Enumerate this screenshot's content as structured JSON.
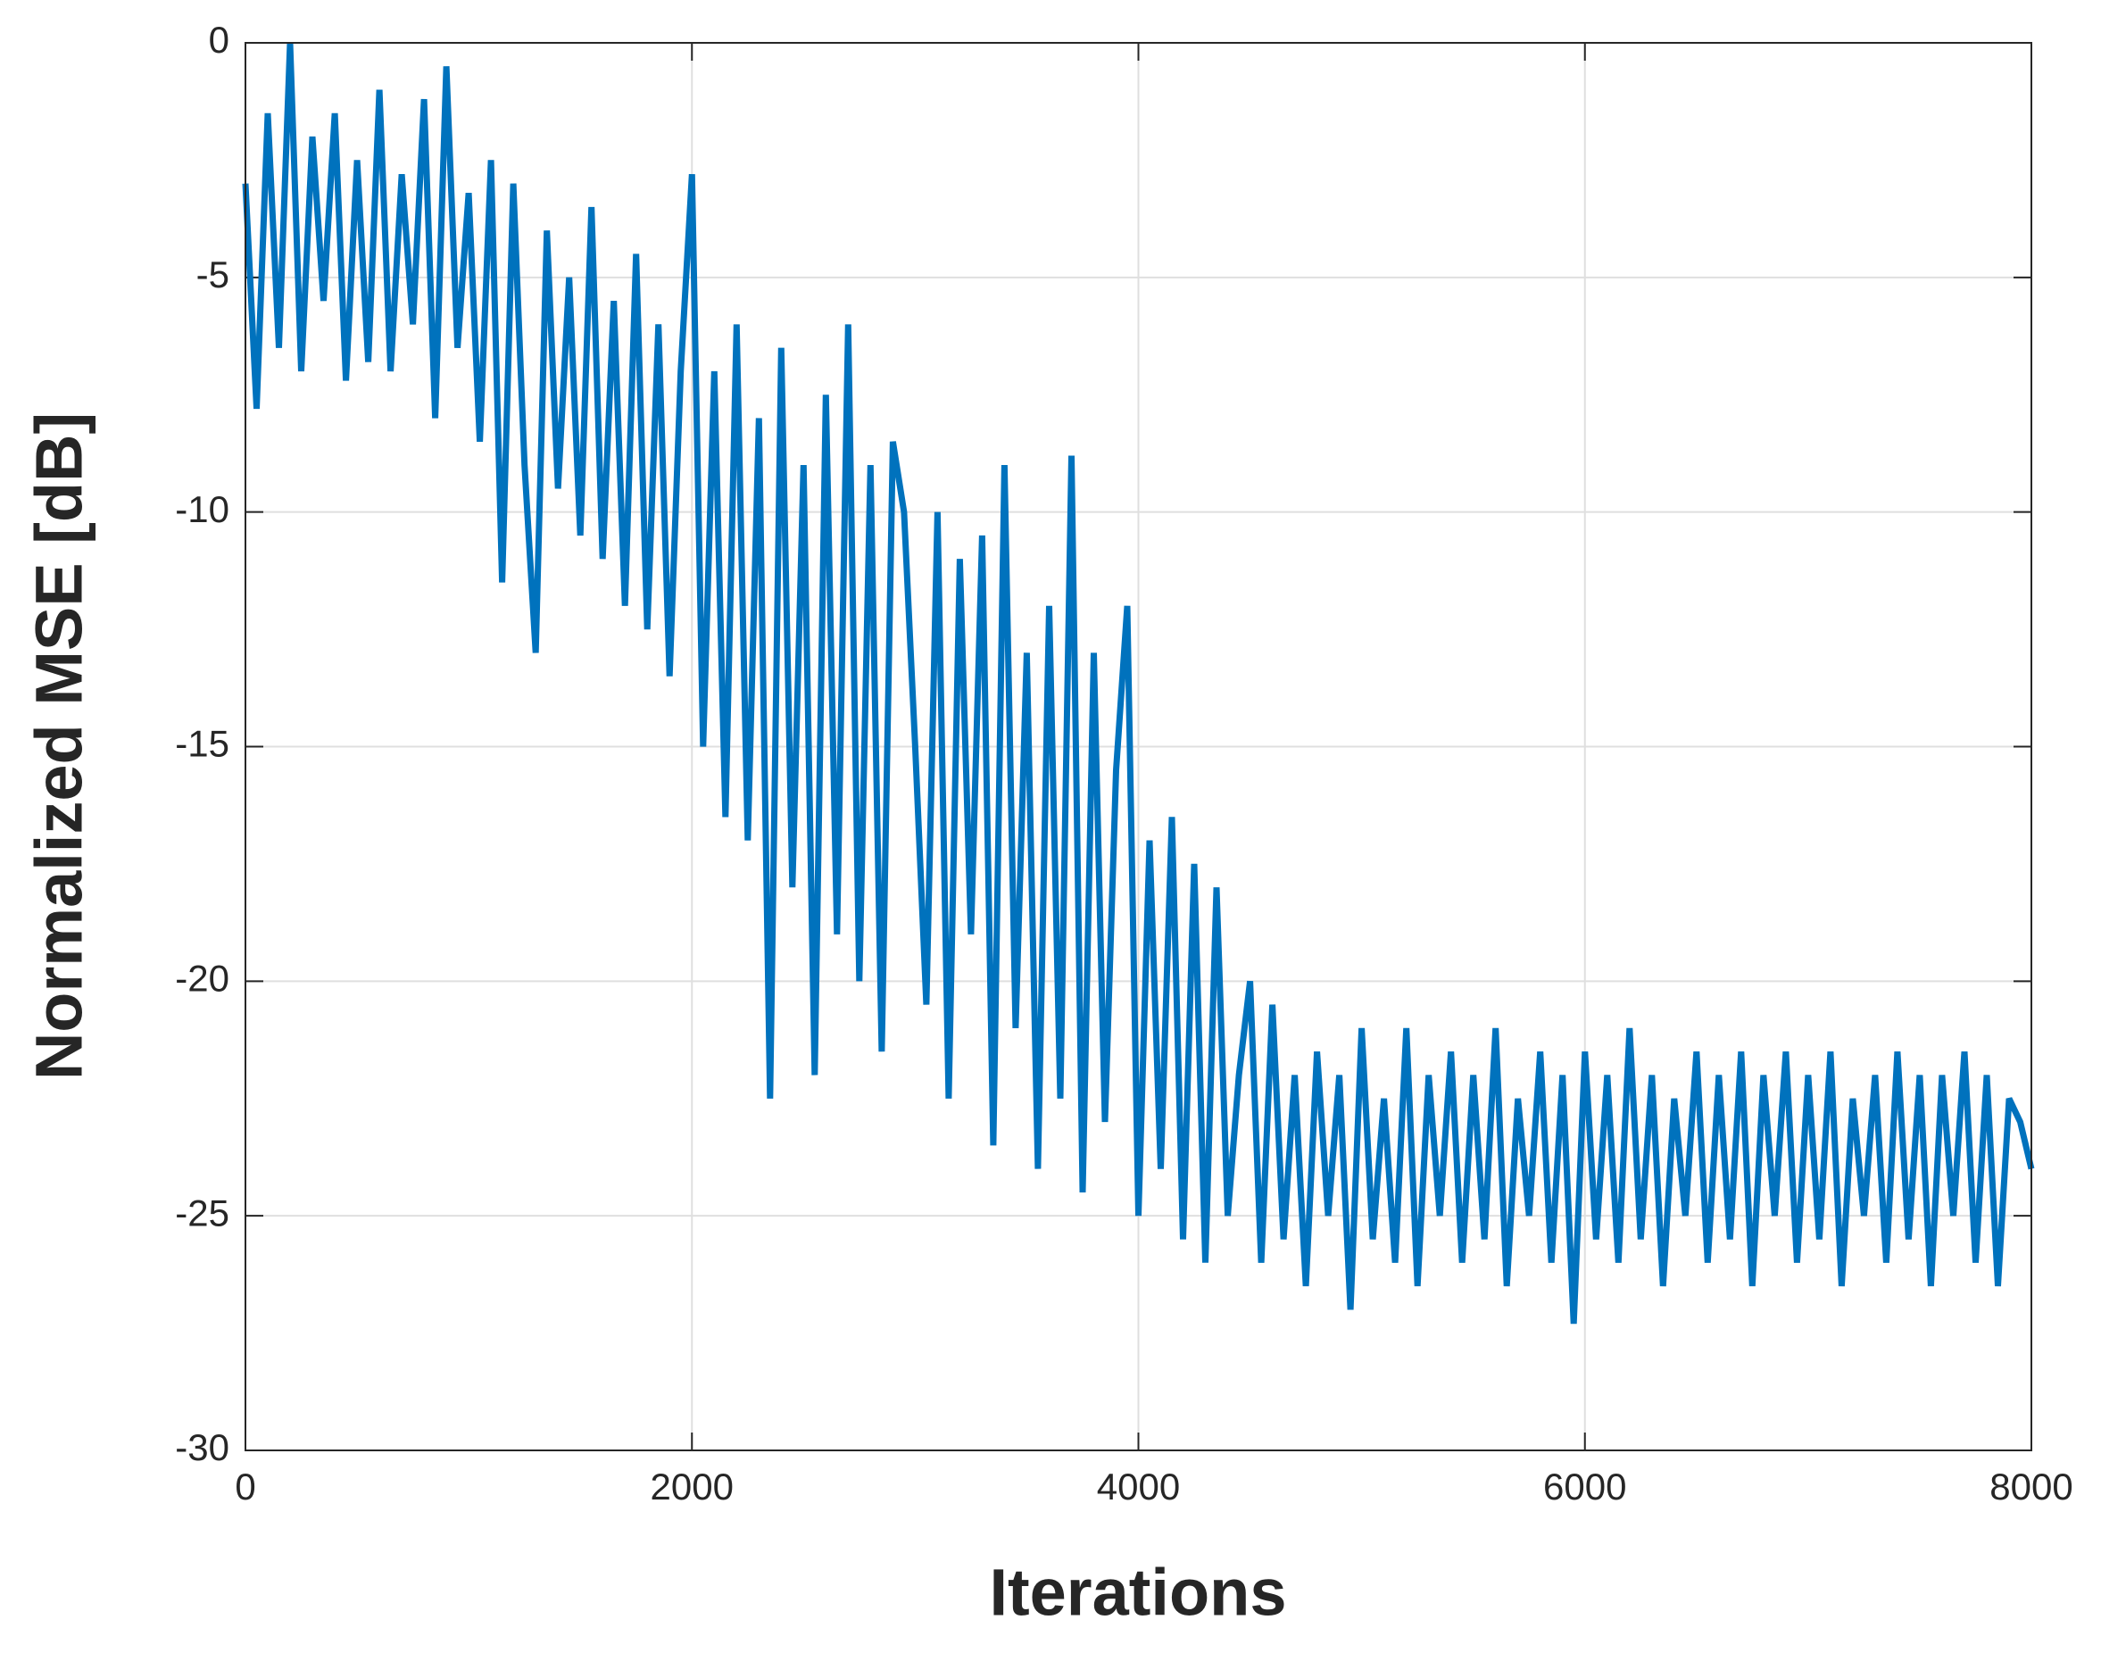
{
  "chart_data": {
    "type": "line",
    "xlabel": "Iterations",
    "ylabel": "Normalized MSE [dB]",
    "x": [
      0,
      50,
      100,
      150,
      200,
      250,
      300,
      350,
      400,
      450,
      500,
      550,
      600,
      650,
      700,
      750,
      800,
      850,
      900,
      950,
      1000,
      1050,
      1100,
      1150,
      1200,
      1250,
      1300,
      1350,
      1400,
      1450,
      1500,
      1550,
      1600,
      1650,
      1700,
      1750,
      1800,
      1850,
      1900,
      1950,
      2000,
      2050,
      2100,
      2150,
      2200,
      2250,
      2300,
      2350,
      2400,
      2450,
      2500,
      2550,
      2600,
      2650,
      2700,
      2750,
      2800,
      2850,
      2900,
      2950,
      3000,
      3050,
      3100,
      3150,
      3200,
      3250,
      3300,
      3350,
      3400,
      3450,
      3500,
      3550,
      3600,
      3650,
      3700,
      3750,
      3800,
      3850,
      3900,
      3950,
      4000,
      4050,
      4100,
      4150,
      4200,
      4250,
      4300,
      4350,
      4400,
      4450,
      4500,
      4550,
      4600,
      4650,
      4700,
      4750,
      4800,
      4850,
      4900,
      4950,
      5000,
      5050,
      5100,
      5150,
      5200,
      5250,
      5300,
      5350,
      5400,
      5450,
      5500,
      5550,
      5600,
      5650,
      5700,
      5750,
      5800,
      5850,
      5900,
      5950,
      6000,
      6050,
      6100,
      6150,
      6200,
      6250,
      6300,
      6350,
      6400,
      6450,
      6500,
      6550,
      6600,
      6650,
      6700,
      6750,
      6800,
      6850,
      6900,
      6950,
      7000,
      7050,
      7100,
      7150,
      7200,
      7250,
      7300,
      7350,
      7400,
      7450,
      7500,
      7550,
      7600,
      7650,
      7700,
      7750,
      7800,
      7850,
      7900,
      7950,
      8000
    ],
    "series": [
      {
        "color": "#0072bd",
        "values": [
          -3,
          -7.8,
          -1.5,
          -6.5,
          0,
          -7,
          -2,
          -5.5,
          -1.5,
          -7.2,
          -2.5,
          -6.8,
          -1,
          -7,
          -2.8,
          -6,
          -1.2,
          -8,
          -0.5,
          -6.5,
          -3.2,
          -8.5,
          -2.5,
          -11.5,
          -3,
          -9,
          -13,
          -4,
          -9.5,
          -5,
          -10.5,
          -3.5,
          -11,
          -5.5,
          -12,
          -4.5,
          -12.5,
          -6,
          -13.5,
          -7,
          -2.8,
          -15,
          -7,
          -16.5,
          -6,
          -17,
          -8,
          -22.5,
          -6.5,
          -18,
          -9,
          -22,
          -7.5,
          -19,
          -6,
          -20,
          -9,
          -21.5,
          -8.5,
          -10,
          -15,
          -20.5,
          -10,
          -22.5,
          -11,
          -19,
          -10.5,
          -23.5,
          -9,
          -21,
          -13,
          -24,
          -12,
          -22.5,
          -8.8,
          -24.5,
          -13,
          -23,
          -15.5,
          -12,
          -25,
          -17,
          -24,
          -16.5,
          -25.5,
          -17.5,
          -26,
          -18,
          -25,
          -22,
          -20,
          -26,
          -20.5,
          -25.5,
          -22,
          -26.5,
          -21.5,
          -25,
          -22,
          -27,
          -21,
          -25.5,
          -22.5,
          -26,
          -21,
          -26.5,
          -22,
          -25,
          -21.5,
          -26,
          -22,
          -25.5,
          -21,
          -26.5,
          -22.5,
          -25,
          -21.5,
          -26,
          -22,
          -27.3,
          -21.5,
          -25.5,
          -22,
          -26,
          -21,
          -25.5,
          -22,
          -26.5,
          -22.5,
          -25,
          -21.5,
          -26,
          -22,
          -25.5,
          -21.5,
          -26.5,
          -22,
          -25,
          -21.5,
          -26,
          -22,
          -25.5,
          -21.5,
          -26.5,
          -22.5,
          -25,
          -22,
          -26,
          -21.5,
          -25.5,
          -22,
          -26.5,
          -22,
          -25,
          -21.5,
          -26,
          -22,
          -26.5,
          -22.5,
          -23,
          -24
        ]
      }
    ],
    "xlim": [
      0,
      8000
    ],
    "xticks": [
      0,
      2000,
      4000,
      6000,
      8000
    ],
    "ylim": [
      -30,
      0
    ],
    "yticks": [
      -30,
      -25,
      -20,
      -15,
      -10,
      -5,
      0
    ],
    "grid": true
  }
}
